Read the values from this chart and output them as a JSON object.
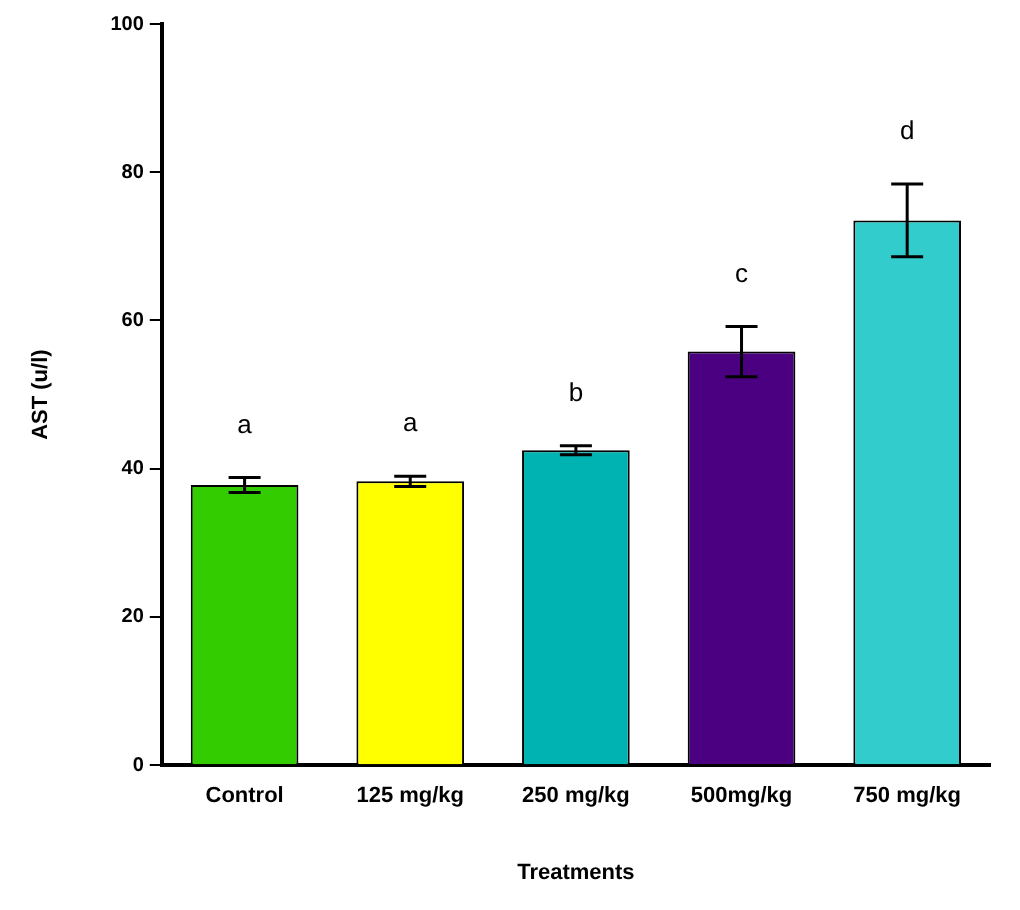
{
  "chart_data": {
    "type": "bar",
    "xlabel": "Treatments",
    "ylabel": "AST (u/l)",
    "categories": [
      "Control",
      "125 mg/kg",
      "250 mg/kg",
      "500mg/kg",
      "750 mg/kg"
    ],
    "values": [
      37.8,
      38.3,
      42.5,
      55.8,
      73.5
    ],
    "errors": [
      1.0,
      0.7,
      0.6,
      3.4,
      4.9
    ],
    "colors": [
      "#33cc00",
      "#ffff00",
      "#00b3b3",
      "#4b0082",
      "#33cccc"
    ],
    "ylim": [
      0,
      100
    ],
    "yticks": [
      0,
      20,
      40,
      60,
      80,
      100
    ],
    "grid": false,
    "legend": false,
    "annotations": [
      "a",
      "a",
      "b",
      "c",
      "d"
    ]
  }
}
